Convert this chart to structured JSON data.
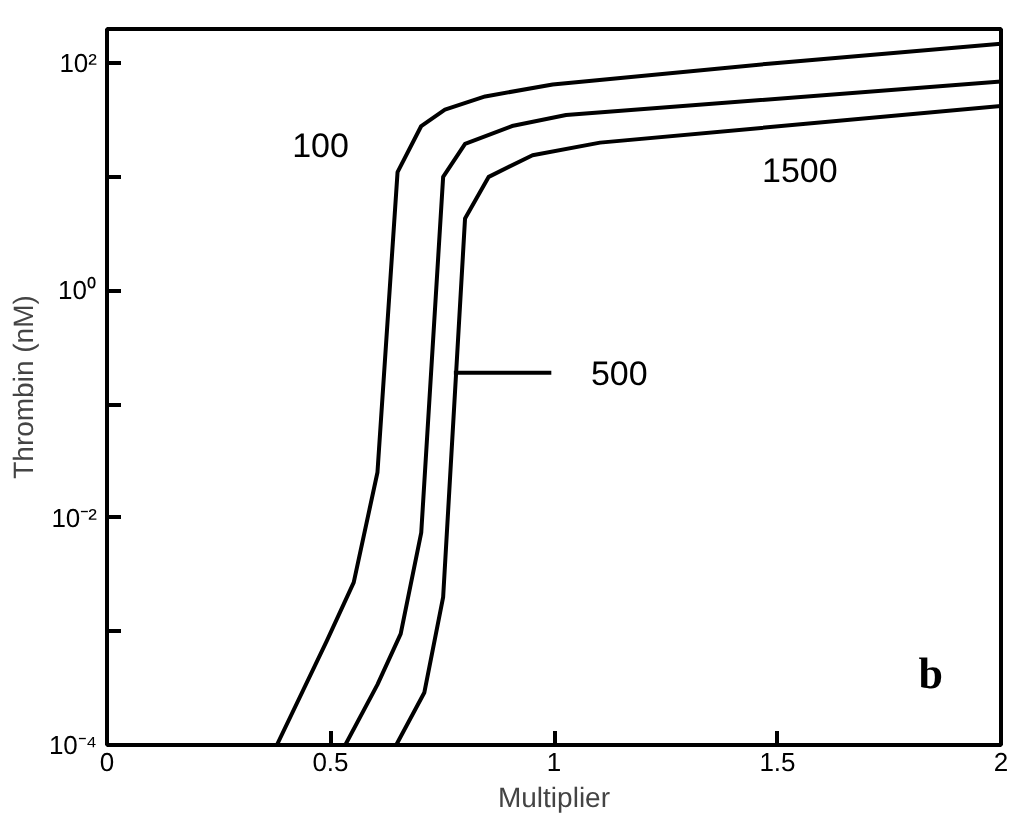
{
  "chart_data": {
    "type": "line",
    "xlabel": "Multiplier",
    "ylabel": "Thrombin (nM)",
    "log": "y",
    "grid": false,
    "marker": "none",
    "line_style": "solid",
    "xlim": [
      0,
      2
    ],
    "xticks": [
      0,
      0.5,
      1,
      1.5,
      2
    ],
    "ylim": [
      0.0001,
      200
    ],
    "yticks": [
      {
        "value": 0.0001,
        "label": "10⁻⁴"
      },
      {
        "value": 0.001,
        "label": null
      },
      {
        "value": 0.01,
        "label": "10⁻²"
      },
      {
        "value": 0.1,
        "label": null
      },
      {
        "value": 1,
        "label": "10⁰"
      },
      {
        "value": 10,
        "label": null
      },
      {
        "value": 100,
        "label": "10²"
      }
    ],
    "series": [
      {
        "color": "#000000",
        "x": [
          0.38,
          0.492,
          0.552,
          0.605,
          0.65,
          0.703,
          0.756,
          0.846,
          0.997,
          1.48,
          2.0
        ],
        "values": [
          0.0001,
          0.00083,
          0.0027,
          0.025,
          11,
          28,
          39,
          51,
          65,
          99,
          148
        ]
      },
      {
        "color": "#000000",
        "x": [
          0.533,
          0.605,
          0.657,
          0.703,
          0.752,
          0.801,
          0.906,
          1.027,
          2.0
        ],
        "values": [
          0.0001,
          0.00034,
          0.00095,
          0.0074,
          10,
          19.5,
          28,
          35,
          69
        ]
      },
      {
        "color": "#000000",
        "x": [
          0.647,
          0.71,
          0.752,
          0.801,
          0.854,
          0.952,
          1.103,
          2.0
        ],
        "values": [
          0.0001,
          0.00029,
          0.002,
          4.3,
          10,
          15.5,
          20,
          42
        ]
      }
    ],
    "annotations": [
      {
        "text": "100",
        "x": 0.679,
        "y": 19
      },
      "500",
      {
        "text": "1500",
        "x": 1.55,
        "y": 29
      },
      "b"
    ]
  }
}
